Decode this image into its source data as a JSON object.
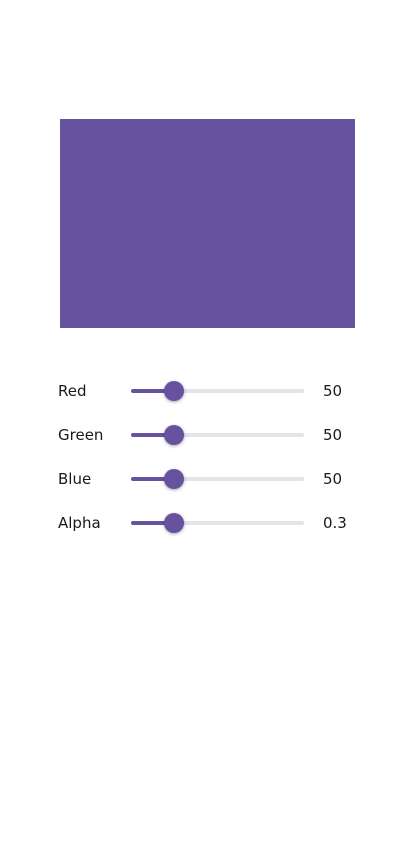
{
  "colors": {
    "preview": "#67529f",
    "accent": "#67529f",
    "track": "#e4e3e8"
  },
  "sliders": [
    {
      "label": "Red",
      "value": "50",
      "fraction": 0.25
    },
    {
      "label": "Green",
      "value": "50",
      "fraction": 0.25
    },
    {
      "label": "Blue",
      "value": "50",
      "fraction": 0.25
    },
    {
      "label": "Alpha",
      "value": "0.3",
      "fraction": 0.25
    }
  ]
}
